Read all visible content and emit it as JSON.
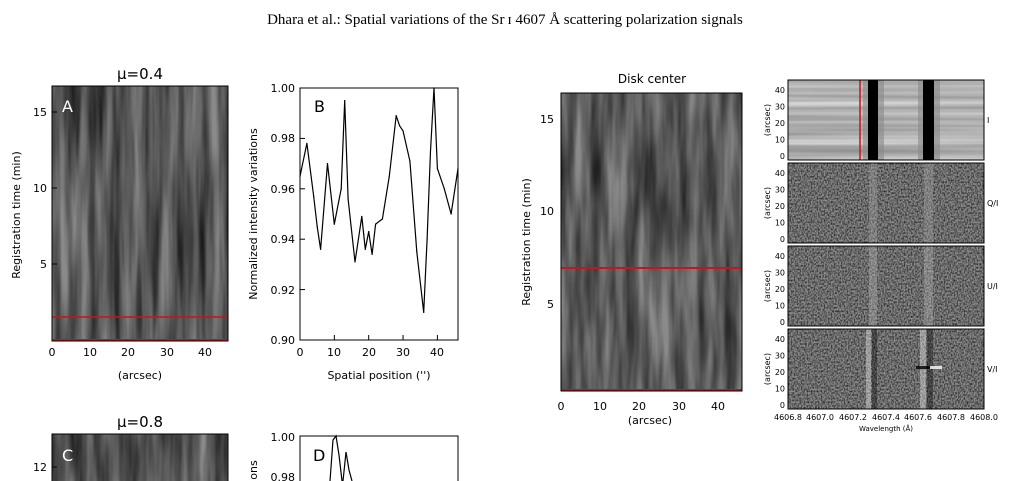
{
  "header": {
    "running_title": "Dhara et al.: Spatial variations of the Sr ɪ 4607 Å  scattering polarization signals"
  },
  "panelA": {
    "title": "μ=0.4",
    "letter": "A",
    "ylabel": "Registration time (min)",
    "xlabel": "(arcsec)",
    "yticks": [
      "5",
      "10",
      "15"
    ],
    "xticks": [
      "0",
      "10",
      "20",
      "30",
      "40"
    ]
  },
  "panelB": {
    "letter": "B",
    "ylabel": "Normalized intensity variations",
    "xlabel": "Spatial position ('')",
    "yticks": [
      "0.90",
      "0.92",
      "0.94",
      "0.96",
      "0.98",
      "1.00"
    ],
    "xticks": [
      "0",
      "10",
      "20",
      "30",
      "40"
    ]
  },
  "panelC": {
    "title": "μ=0.8",
    "letter": "C",
    "yticks": [
      "12"
    ]
  },
  "panelD": {
    "letter": "D",
    "ylabel_fragment": "ons",
    "yticks": [
      "0.98",
      "1.00"
    ]
  },
  "diskpanel": {
    "title": "Disk center",
    "ylabel": "Registration time (min)",
    "xlabel": "(arcsec)",
    "yticks": [
      "5",
      "10",
      "15"
    ],
    "xticks": [
      "0",
      "10",
      "20",
      "30",
      "40"
    ]
  },
  "stokes": {
    "ylabel": "(arcsec)",
    "yticks": [
      "0",
      "10",
      "20",
      "30",
      "40"
    ],
    "labels": [
      "I",
      "Q/I",
      "U/I",
      "V/I"
    ],
    "xticks": [
      "4606.8",
      "4607.0",
      "4607.2",
      "4607.4",
      "4607.6",
      "4607.8",
      "4608.0"
    ],
    "xlabel": "Wavelength (Å)"
  },
  "colors": {
    "marker_red": "#c0181c"
  },
  "chart_data": [
    {
      "type": "line",
      "panel": "B",
      "x": [
        0,
        2,
        4,
        5,
        6,
        8,
        10,
        12,
        13,
        14,
        16,
        18,
        19,
        20,
        21,
        22,
        24,
        26,
        28,
        29,
        30,
        32,
        34,
        36,
        37,
        38,
        39,
        40,
        42,
        44,
        46
      ],
      "y": [
        0.965,
        0.978,
        0.957,
        0.945,
        0.936,
        0.97,
        0.946,
        0.96,
        0.995,
        0.956,
        0.931,
        0.949,
        0.936,
        0.943,
        0.934,
        0.946,
        0.948,
        0.965,
        0.989,
        0.985,
        0.983,
        0.971,
        0.935,
        0.911,
        0.94,
        0.975,
        1.0,
        0.968,
        0.96,
        0.95,
        0.968
      ],
      "xlim": [
        0,
        46
      ],
      "ylim": [
        0.9,
        1.0
      ]
    }
  ]
}
